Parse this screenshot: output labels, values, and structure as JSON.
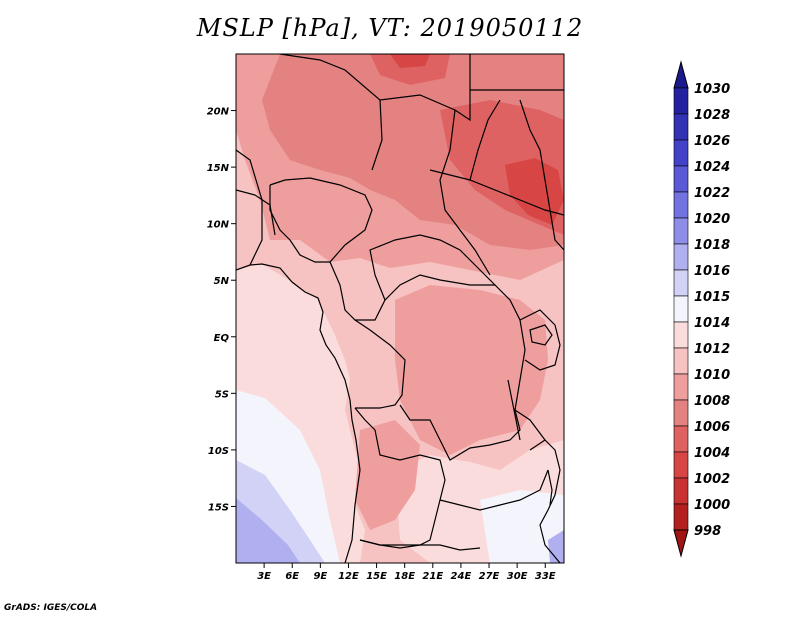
{
  "title": "MSLP [hPa], VT: 2019050112",
  "credit": "GrADS: IGES/COLA",
  "map": {
    "lon_range": [
      0,
      35
    ],
    "lat_range": [
      -20,
      25
    ],
    "lon_ticks": [
      "3E",
      "6E",
      "9E",
      "12E",
      "15E",
      "18E",
      "21E",
      "24E",
      "27E",
      "30E",
      "33E"
    ],
    "lon_tick_values": [
      3,
      6,
      9,
      12,
      15,
      18,
      21,
      24,
      27,
      30,
      33
    ],
    "lat_ticks": [
      "20N",
      "15N",
      "10N",
      "5N",
      "EQ",
      "5S",
      "10S",
      "15S"
    ],
    "lat_tick_values": [
      20,
      15,
      10,
      5,
      0,
      -5,
      -10,
      -15
    ]
  },
  "colorbar": {
    "labels": [
      "1030",
      "1028",
      "1026",
      "1024",
      "1022",
      "1020",
      "1018",
      "1016",
      "1015",
      "1014",
      "1012",
      "1010",
      "1008",
      "1006",
      "1004",
      "1002",
      "1000",
      "998"
    ],
    "colors": [
      "#1a1a8c",
      "#2222a0",
      "#3232b4",
      "#4242c8",
      "#5a5ad6",
      "#7272e0",
      "#8e8ee8",
      "#b0b0f0",
      "#d2d2f6",
      "#f4f4fc",
      "#fbdcdc",
      "#f6c2c2",
      "#ef9e9e",
      "#e48282",
      "#df6262",
      "#d84545",
      "#c83232",
      "#b42020",
      "#a01414"
    ]
  },
  "field_colors": {
    "c1016": "#b0b0f0",
    "c1015": "#d2d2f6",
    "c1014": "#f4f4fc",
    "c1012": "#fbdcdc",
    "c1010": "#f6c2c2",
    "c1008": "#ef9e9e",
    "c1006": "#e48282",
    "c1004": "#df6262",
    "c1002": "#d84545"
  }
}
